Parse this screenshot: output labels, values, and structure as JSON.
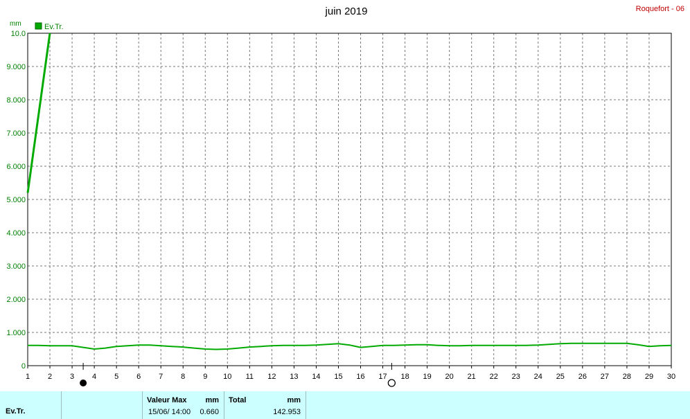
{
  "chart_data": {
    "type": "line",
    "title": "juin 2019",
    "station": "Roquefort - 06",
    "ylabel": "mm",
    "legend": "Ev.Tr.",
    "ylim": [
      0,
      10
    ],
    "xlim": [
      1,
      30
    ],
    "y_ticks": [
      "0",
      "1.000",
      "2.000",
      "3.000",
      "4.000",
      "5.000",
      "6.000",
      "7.000",
      "8.000",
      "9.000",
      "10.0"
    ],
    "x_ticks": [
      "1",
      "2",
      "3",
      "4",
      "5",
      "6",
      "7",
      "8",
      "9",
      "10",
      "11",
      "12",
      "13",
      "14",
      "15",
      "16",
      "17",
      "18",
      "19",
      "20",
      "21",
      "22",
      "23",
      "24",
      "25",
      "26",
      "27",
      "28",
      "29",
      "30"
    ],
    "series": [
      {
        "name": "Ev.Tr.",
        "color": "#00aa00",
        "x": [
          1,
          2
        ],
        "y": [
          5.2,
          10.0
        ],
        "style": "thick"
      },
      {
        "name": "Ev.Tr.",
        "color": "#00aa00",
        "x": [
          1,
          1.5,
          2,
          2.5,
          3,
          3.5,
          4,
          4.5,
          5,
          5.5,
          6,
          6.5,
          7,
          7.5,
          8,
          8.5,
          9,
          9.5,
          10,
          10.5,
          11,
          11.5,
          12,
          12.5,
          13,
          13.5,
          14,
          14.5,
          15,
          15.5,
          16,
          16.5,
          17,
          17.5,
          18,
          18.5,
          19,
          19.5,
          20,
          20.5,
          21,
          21.5,
          22,
          22.5,
          23,
          23.5,
          24,
          24.5,
          25,
          25.5,
          26,
          26.5,
          27,
          27.5,
          28,
          28.5,
          29,
          29.5,
          30
        ],
        "y": [
          0.61,
          0.61,
          0.6,
          0.6,
          0.6,
          0.55,
          0.5,
          0.53,
          0.58,
          0.6,
          0.62,
          0.62,
          0.6,
          0.58,
          0.56,
          0.53,
          0.5,
          0.49,
          0.5,
          0.53,
          0.56,
          0.58,
          0.6,
          0.61,
          0.61,
          0.61,
          0.62,
          0.64,
          0.66,
          0.62,
          0.55,
          0.58,
          0.61,
          0.61,
          0.62,
          0.63,
          0.63,
          0.61,
          0.6,
          0.6,
          0.61,
          0.61,
          0.61,
          0.61,
          0.61,
          0.61,
          0.62,
          0.64,
          0.66,
          0.67,
          0.67,
          0.67,
          0.67,
          0.67,
          0.67,
          0.63,
          0.58,
          0.6,
          0.61
        ],
        "style": "thin"
      }
    ],
    "moon_markers": [
      {
        "x": 3.5,
        "phase": "new"
      },
      {
        "x": 17.4,
        "phase": "full"
      }
    ],
    "grid": true
  },
  "footer": {
    "series_label": "Ev.Tr.",
    "max_title": "Valeur Max",
    "max_unit": "mm",
    "max_date": "15/06/ 14:00",
    "max_value": "0.660",
    "total_title": "Total",
    "total_unit": "mm",
    "total_value": "142.953"
  }
}
